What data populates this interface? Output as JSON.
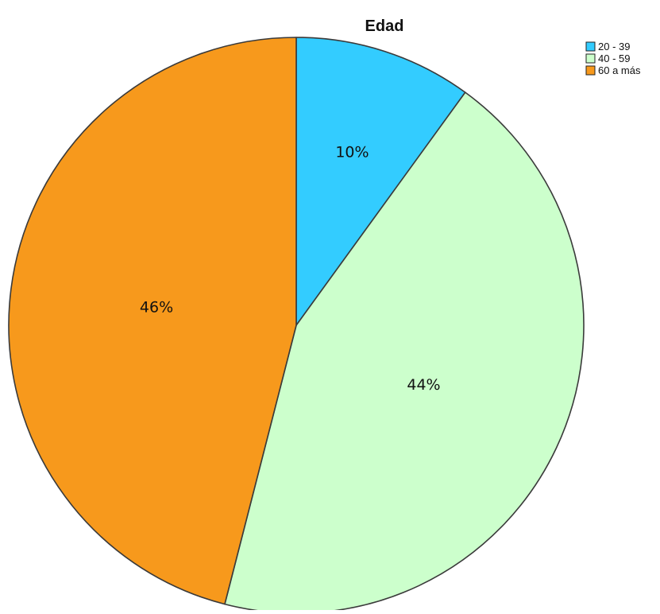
{
  "chart_data": {
    "type": "pie",
    "title": "Edad",
    "categories": [
      "20 - 39",
      "40 - 59",
      "60 a más"
    ],
    "values": [
      10,
      44,
      46
    ],
    "data_labels": [
      "10%",
      "44%",
      "46%"
    ],
    "colors": [
      "#33ccff",
      "#ccffcc",
      "#f7991c"
    ],
    "edge_color": "#3a3a3a",
    "start_angle_deg": 0,
    "direction": "clockwise",
    "legend_position": "top-right"
  }
}
